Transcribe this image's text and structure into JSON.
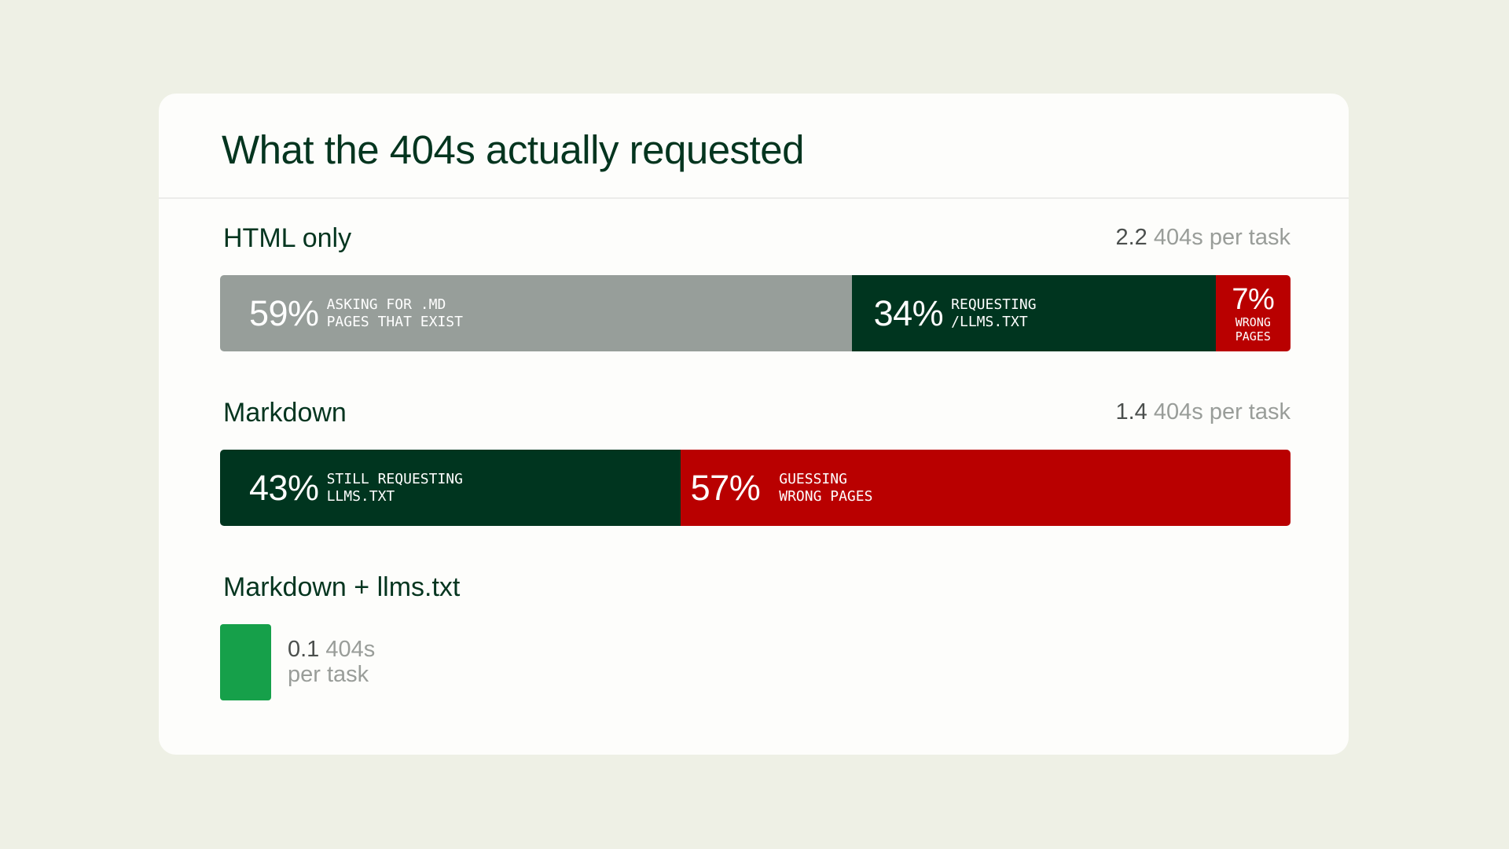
{
  "title": "What the 404s actually requested",
  "colors": {
    "page_bg": "#eef0e5",
    "card_bg": "#fdfdfb",
    "gray": "#979e9a",
    "dark_green": "#00351f",
    "red": "#b90000",
    "bright_green": "#16a04a"
  },
  "chart_data": {
    "type": "bar",
    "stacked": true,
    "orientation": "horizontal",
    "title": "What the 404s actually requested",
    "groups": [
      {
        "name": "HTML only",
        "per_task_value": "2.2",
        "per_task_unit": "404s per task",
        "segments": [
          {
            "percent": 59,
            "pct_label": "59%",
            "label": "ASKING FOR .MD PAGES THAT EXIST",
            "label_lines": [
              "ASKING FOR .MD",
              "PAGES THAT EXIST"
            ],
            "color": "#979e9a"
          },
          {
            "percent": 34,
            "pct_label": "34%",
            "label": "REQUESTING /LLMS.TXT",
            "label_lines": [
              "REQUESTING",
              "/LLMS.TXT"
            ],
            "color": "#00351f"
          },
          {
            "percent": 7,
            "pct_label": "7%",
            "label": "WRONG PAGES",
            "label_lines": [
              "WRONG",
              "PAGES"
            ],
            "color": "#b90000"
          }
        ]
      },
      {
        "name": "Markdown",
        "per_task_value": "1.4",
        "per_task_unit": "404s per task",
        "segments": [
          {
            "percent": 43,
            "pct_label": "43%",
            "label": "STILL REQUESTING LLMS.TXT",
            "label_lines": [
              "STILL REQUESTING",
              "LLMS.TXT"
            ],
            "color": "#00351f"
          },
          {
            "percent": 57,
            "pct_label": "57%",
            "label": "GUESSING WRONG PAGES",
            "label_lines": [
              "GUESSING",
              "WRONG PAGES"
            ],
            "color": "#b90000"
          }
        ]
      },
      {
        "name": "Markdown + llms.txt",
        "per_task_value": "0.1",
        "per_task_unit_1": "404s",
        "per_task_unit_2": "per task",
        "color": "#16a04a"
      }
    ]
  }
}
